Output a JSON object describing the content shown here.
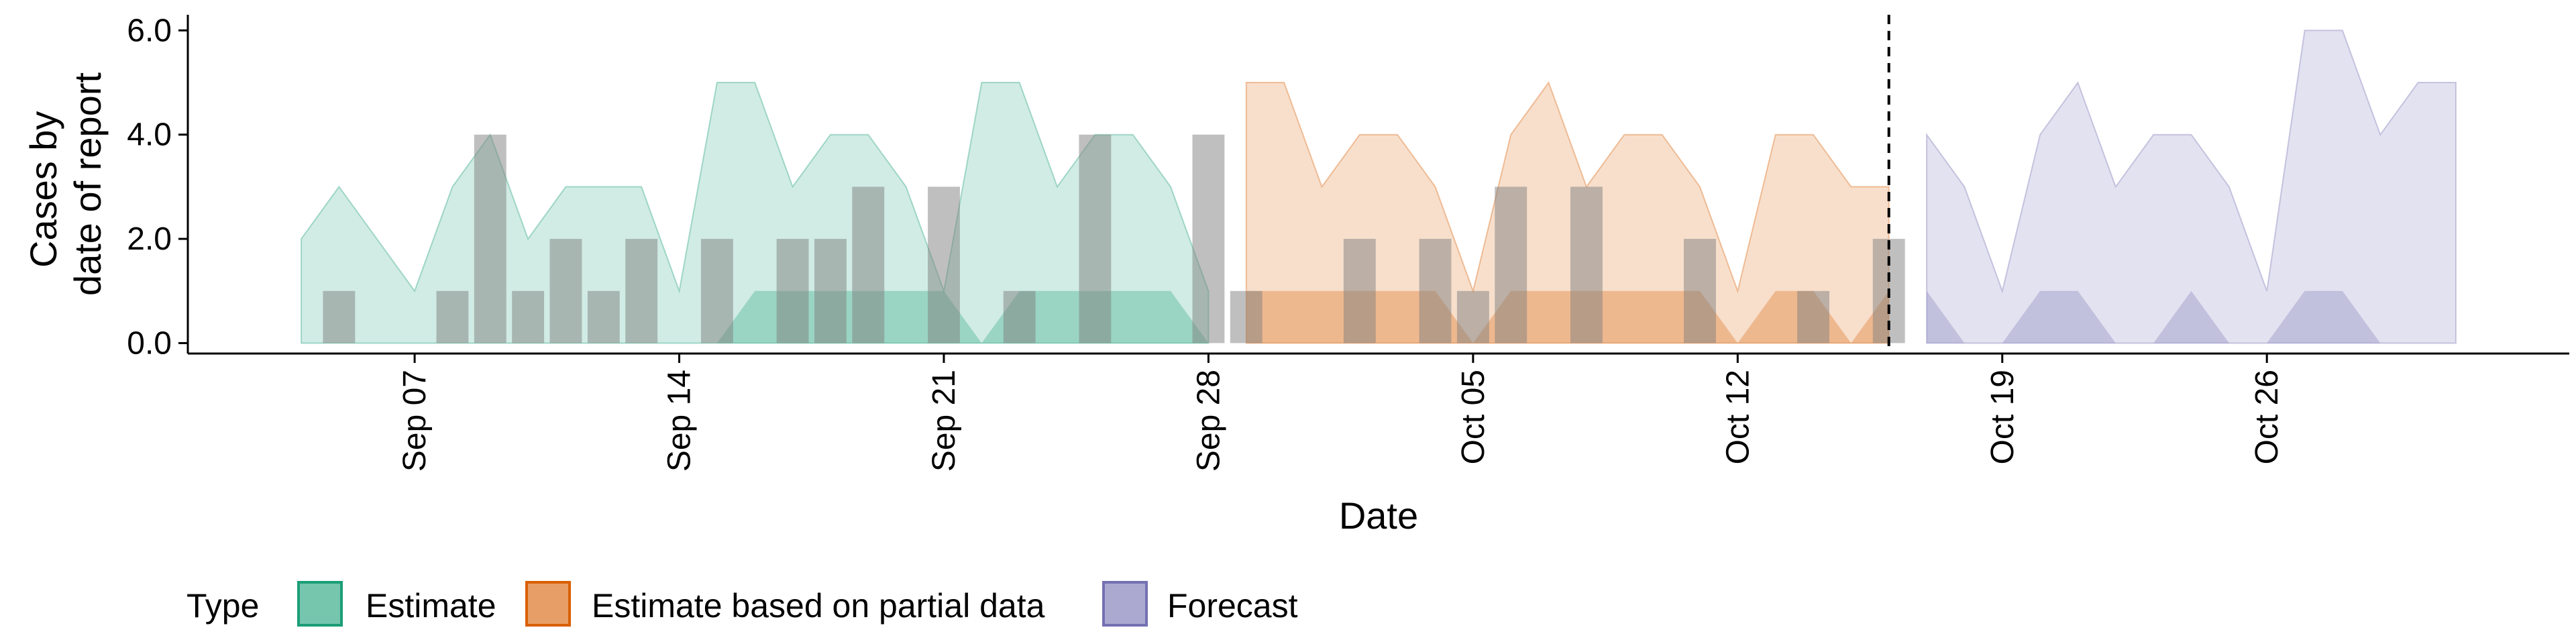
{
  "chart_data": {
    "type": "area",
    "title": "",
    "xlabel": "Date",
    "ylabel": [
      "Cases by",
      "date of report"
    ],
    "ylim": [
      -0.2,
      6.3
    ],
    "xlim": [
      "2020-09-01",
      "2020-11-03"
    ],
    "y_ticks": [
      0,
      2,
      4,
      6
    ],
    "y_tick_labels": [
      "0.0",
      "2.0",
      "4.0",
      "6.0"
    ],
    "x_ticks": [
      "2020-09-07",
      "2020-09-14",
      "2020-09-21",
      "2020-09-28",
      "2020-10-05",
      "2020-10-12",
      "2020-10-19",
      "2020-10-26"
    ],
    "x_tick_labels": [
      "Sep 07",
      "Sep 14",
      "Sep 21",
      "Sep 28",
      "Oct 05",
      "Oct 12",
      "Oct 19",
      "Oct 26"
    ],
    "grid": false,
    "legend_title": "Type",
    "legend_position": "bottom",
    "reference_line": {
      "date": "2020-10-16",
      "style": "dashed"
    },
    "series": [
      {
        "name": "Estimate",
        "color": "#1b9e77",
        "dates": [
          "2020-09-04",
          "2020-09-05",
          "2020-09-06",
          "2020-09-07",
          "2020-09-08",
          "2020-09-09",
          "2020-09-10",
          "2020-09-11",
          "2020-09-12",
          "2020-09-13",
          "2020-09-14",
          "2020-09-15",
          "2020-09-16",
          "2020-09-17",
          "2020-09-18",
          "2020-09-19",
          "2020-09-20",
          "2020-09-21",
          "2020-09-22",
          "2020-09-23",
          "2020-09-24",
          "2020-09-25",
          "2020-09-26",
          "2020-09-27",
          "2020-09-28"
        ],
        "lower": [
          0,
          0,
          0,
          0,
          0,
          0,
          0,
          0,
          0,
          0,
          0,
          0,
          1,
          1,
          1,
          1,
          1,
          1,
          0,
          1,
          1,
          1,
          1,
          1,
          0
        ],
        "upper": [
          2,
          3,
          2,
          1,
          3,
          4,
          2,
          3,
          3,
          3,
          1,
          5,
          5,
          3,
          4,
          4,
          3,
          1,
          5,
          5,
          3,
          4,
          4,
          3,
          1
        ]
      },
      {
        "name": "Estimate based on partial data",
        "color": "#d95f02",
        "dates": [
          "2020-09-29",
          "2020-09-30",
          "2020-10-01",
          "2020-10-02",
          "2020-10-03",
          "2020-10-04",
          "2020-10-05",
          "2020-10-06",
          "2020-10-07",
          "2020-10-08",
          "2020-10-09",
          "2020-10-10",
          "2020-10-11",
          "2020-10-12",
          "2020-10-13",
          "2020-10-14",
          "2020-10-15",
          "2020-10-16"
        ],
        "lower": [
          1,
          1,
          1,
          1,
          1,
          1,
          0,
          1,
          1,
          1,
          1,
          1,
          1,
          0,
          1,
          1,
          0,
          1
        ],
        "upper": [
          5,
          5,
          3,
          4,
          4,
          3,
          1,
          4,
          5,
          3,
          4,
          4,
          3,
          1,
          4,
          4,
          3,
          3
        ]
      },
      {
        "name": "Forecast",
        "color": "#7570b3",
        "dates": [
          "2020-10-17",
          "2020-10-18",
          "2020-10-19",
          "2020-10-20",
          "2020-10-21",
          "2020-10-22",
          "2020-10-23",
          "2020-10-24",
          "2020-10-25",
          "2020-10-26",
          "2020-10-27",
          "2020-10-28",
          "2020-10-29",
          "2020-10-30",
          "2020-10-31"
        ],
        "lower": [
          1,
          0,
          0,
          1,
          1,
          0,
          0,
          1,
          0,
          0,
          1,
          1,
          0,
          0,
          0
        ],
        "upper": [
          4,
          3,
          1,
          4,
          5,
          3,
          4,
          4,
          3,
          1,
          6,
          6,
          4,
          5,
          5
        ]
      }
    ],
    "reported_cases": {
      "dates": [
        "2020-09-05",
        "2020-09-08",
        "2020-09-09",
        "2020-09-10",
        "2020-09-11",
        "2020-09-12",
        "2020-09-13",
        "2020-09-15",
        "2020-09-17",
        "2020-09-18",
        "2020-09-19",
        "2020-09-21",
        "2020-09-23",
        "2020-09-25",
        "2020-09-28",
        "2020-09-29",
        "2020-10-02",
        "2020-10-04",
        "2020-10-05",
        "2020-10-06",
        "2020-10-08",
        "2020-10-11",
        "2020-10-14",
        "2020-10-16"
      ],
      "values": [
        1,
        1,
        4,
        1,
        2,
        1,
        2,
        2,
        2,
        2,
        3,
        3,
        1,
        4,
        4,
        1,
        2,
        2,
        1,
        3,
        3,
        2,
        1,
        2
      ]
    }
  }
}
